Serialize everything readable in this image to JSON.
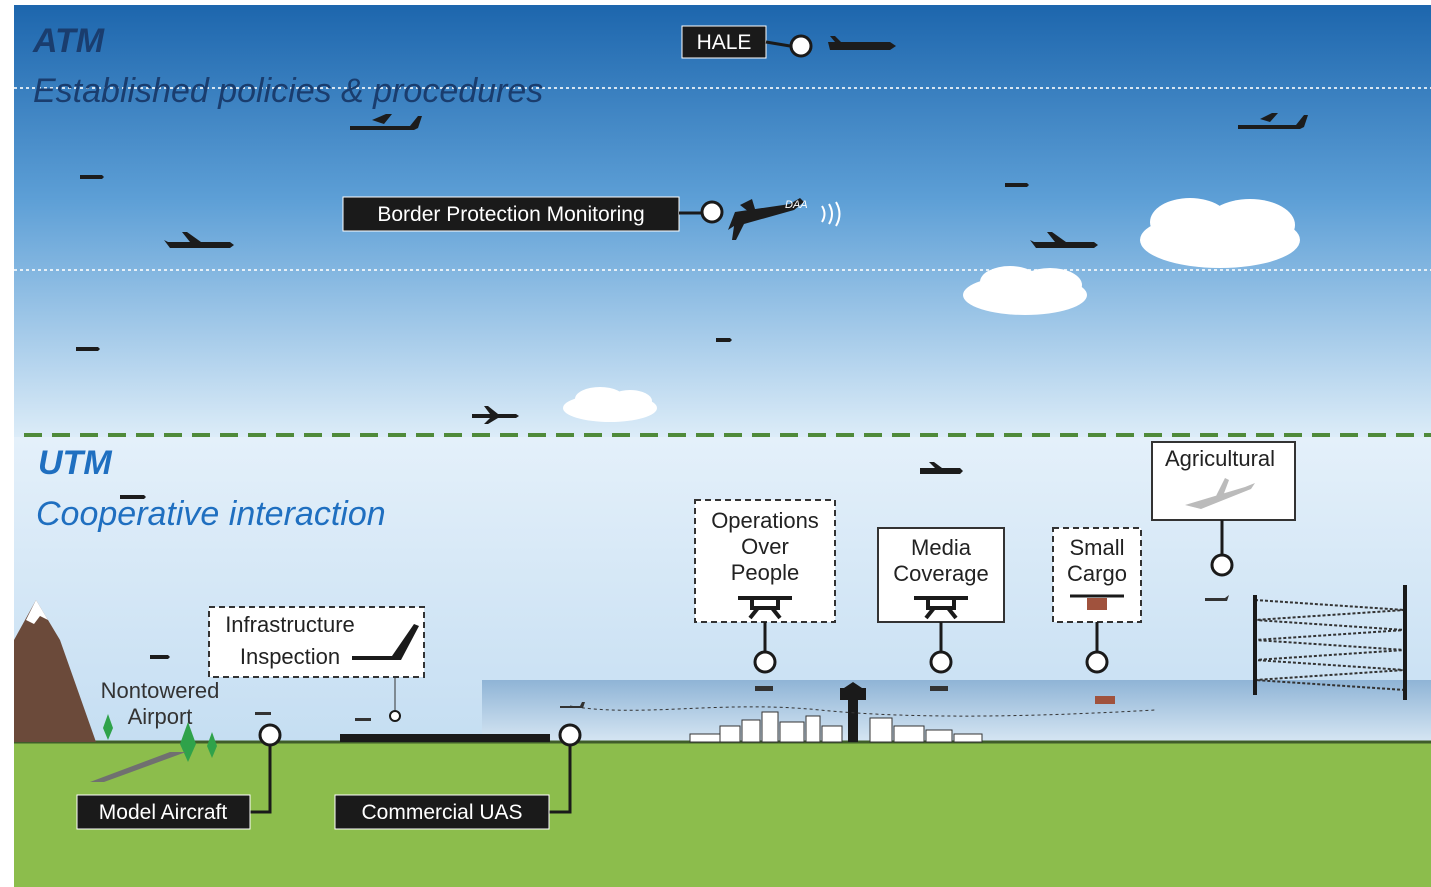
{
  "atm": {
    "title": "ATM",
    "subtitle": "Established policies & procedures"
  },
  "utm": {
    "title": "UTM",
    "subtitle": "Cooperative interaction"
  },
  "labels": {
    "hale": "HALE",
    "border_protection": "Border Protection Monitoring",
    "daa": "DAA",
    "operations_over_people": [
      "Operations",
      "Over",
      "People"
    ],
    "media_coverage": [
      "Media",
      "Coverage"
    ],
    "small_cargo": [
      "Small",
      "Cargo"
    ],
    "agricultural": "Agricultural",
    "infrastructure_inspection": [
      "Infrastructure",
      "Inspection"
    ],
    "nontowered_airport": [
      "Nontowered",
      "Airport"
    ],
    "model_aircraft": "Model Aircraft",
    "commercial_uas": "Commercial UAS"
  }
}
